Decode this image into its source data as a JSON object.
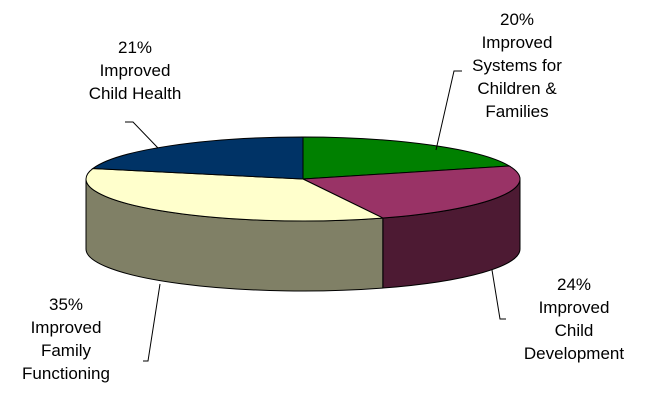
{
  "chart_data": {
    "type": "pie",
    "three_d": true,
    "title": "",
    "legend": "none",
    "slices": [
      {
        "percent": 20,
        "label": "20%",
        "category": "Improved Systems for Children & Families",
        "lines": [
          "Improved",
          "Systems for",
          "Children &",
          "Families"
        ],
        "color": "#008000"
      },
      {
        "percent": 24,
        "label": "24%",
        "category": "Improved Child Development",
        "lines": [
          "Improved",
          "Child",
          "Development"
        ],
        "color": "#993366"
      },
      {
        "percent": 35,
        "label": "35%",
        "category": "Improved Family Functioning",
        "lines": [
          "Improved",
          "Family",
          "Functioning"
        ],
        "color": "#FFFFCC"
      },
      {
        "percent": 21,
        "label": "21%",
        "category": "Improved Child Health",
        "lines": [
          "Improved",
          "Child Health"
        ],
        "color": "#003366"
      }
    ]
  }
}
